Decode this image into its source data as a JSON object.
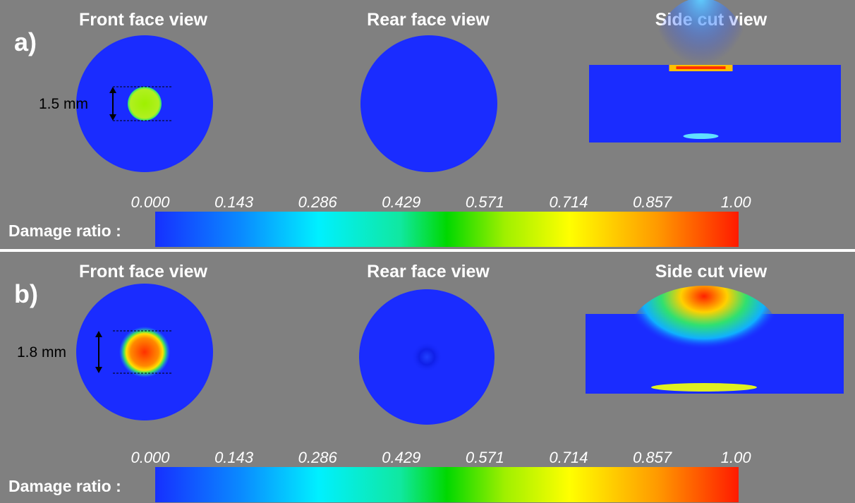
{
  "panels": [
    {
      "label": "a)",
      "views": [
        "Front face view",
        "Rear face view",
        "Side cut view"
      ],
      "dimension": "1.5 mm",
      "colorbar": {
        "title": "Damage ratio :",
        "ticks": [
          "0.000",
          "0.143",
          "0.286",
          "0.429",
          "0.571",
          "0.714",
          "0.857",
          "1.00"
        ]
      }
    },
    {
      "label": "b)",
      "views": [
        "Front face view",
        "Rear face view",
        "Side cut view"
      ],
      "dimension": "1.8 mm",
      "colorbar": {
        "title": "Damage ratio :",
        "ticks": [
          "0.000",
          "0.143",
          "0.286",
          "0.429",
          "0.571",
          "0.714",
          "0.857",
          "1.00"
        ]
      }
    }
  ]
}
